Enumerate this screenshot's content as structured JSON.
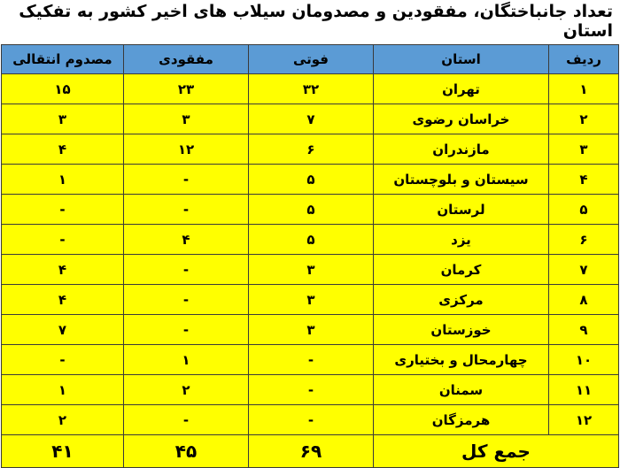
{
  "title": "تعداد جانباختگان، مفقودین و مصدومان سیلاب های اخیر کشور به تفکیک استان",
  "headers": [
    "ردیف",
    "استان",
    "فوتی",
    "مفقودی",
    "مصدوم انتقالی"
  ],
  "rows": [
    [
      "۱",
      "تهران",
      "۳۲",
      "۲۳",
      "۱۵"
    ],
    [
      "۲",
      "خراسان رضوی",
      "۷",
      "۳",
      "۳"
    ],
    [
      "۳",
      "مازندران",
      "۶",
      "۱۲",
      "۴"
    ],
    [
      "۴",
      "سیستان و بلوچستان",
      "۵",
      "-",
      "۱"
    ],
    [
      "۵",
      "لرستان",
      "۵",
      "-",
      "-"
    ],
    [
      "۶",
      "یزد",
      "۵",
      "۴",
      "-"
    ],
    [
      "۷",
      "کرمان",
      "۳",
      "-",
      "۴"
    ],
    [
      "۸",
      "مرکزی",
      "۳",
      "-",
      "۴"
    ],
    [
      "۹",
      "خوزستان",
      "۳",
      "-",
      "۷"
    ],
    [
      "۱۰",
      "چهارمحال و بختیاری",
      "-",
      "۱",
      "-"
    ],
    [
      "۱۱",
      "سمنان",
      "-",
      "۲",
      "۱"
    ],
    [
      "۱۲",
      "هرمزگان",
      "-",
      "-",
      "۲"
    ]
  ],
  "total": {
    "label": "جمع کل",
    "deaths": "۶۹",
    "missing": "۴۵",
    "injured": "۴۱"
  },
  "colors": {
    "header": "#5b9bd5",
    "cells": "#ffff00"
  }
}
